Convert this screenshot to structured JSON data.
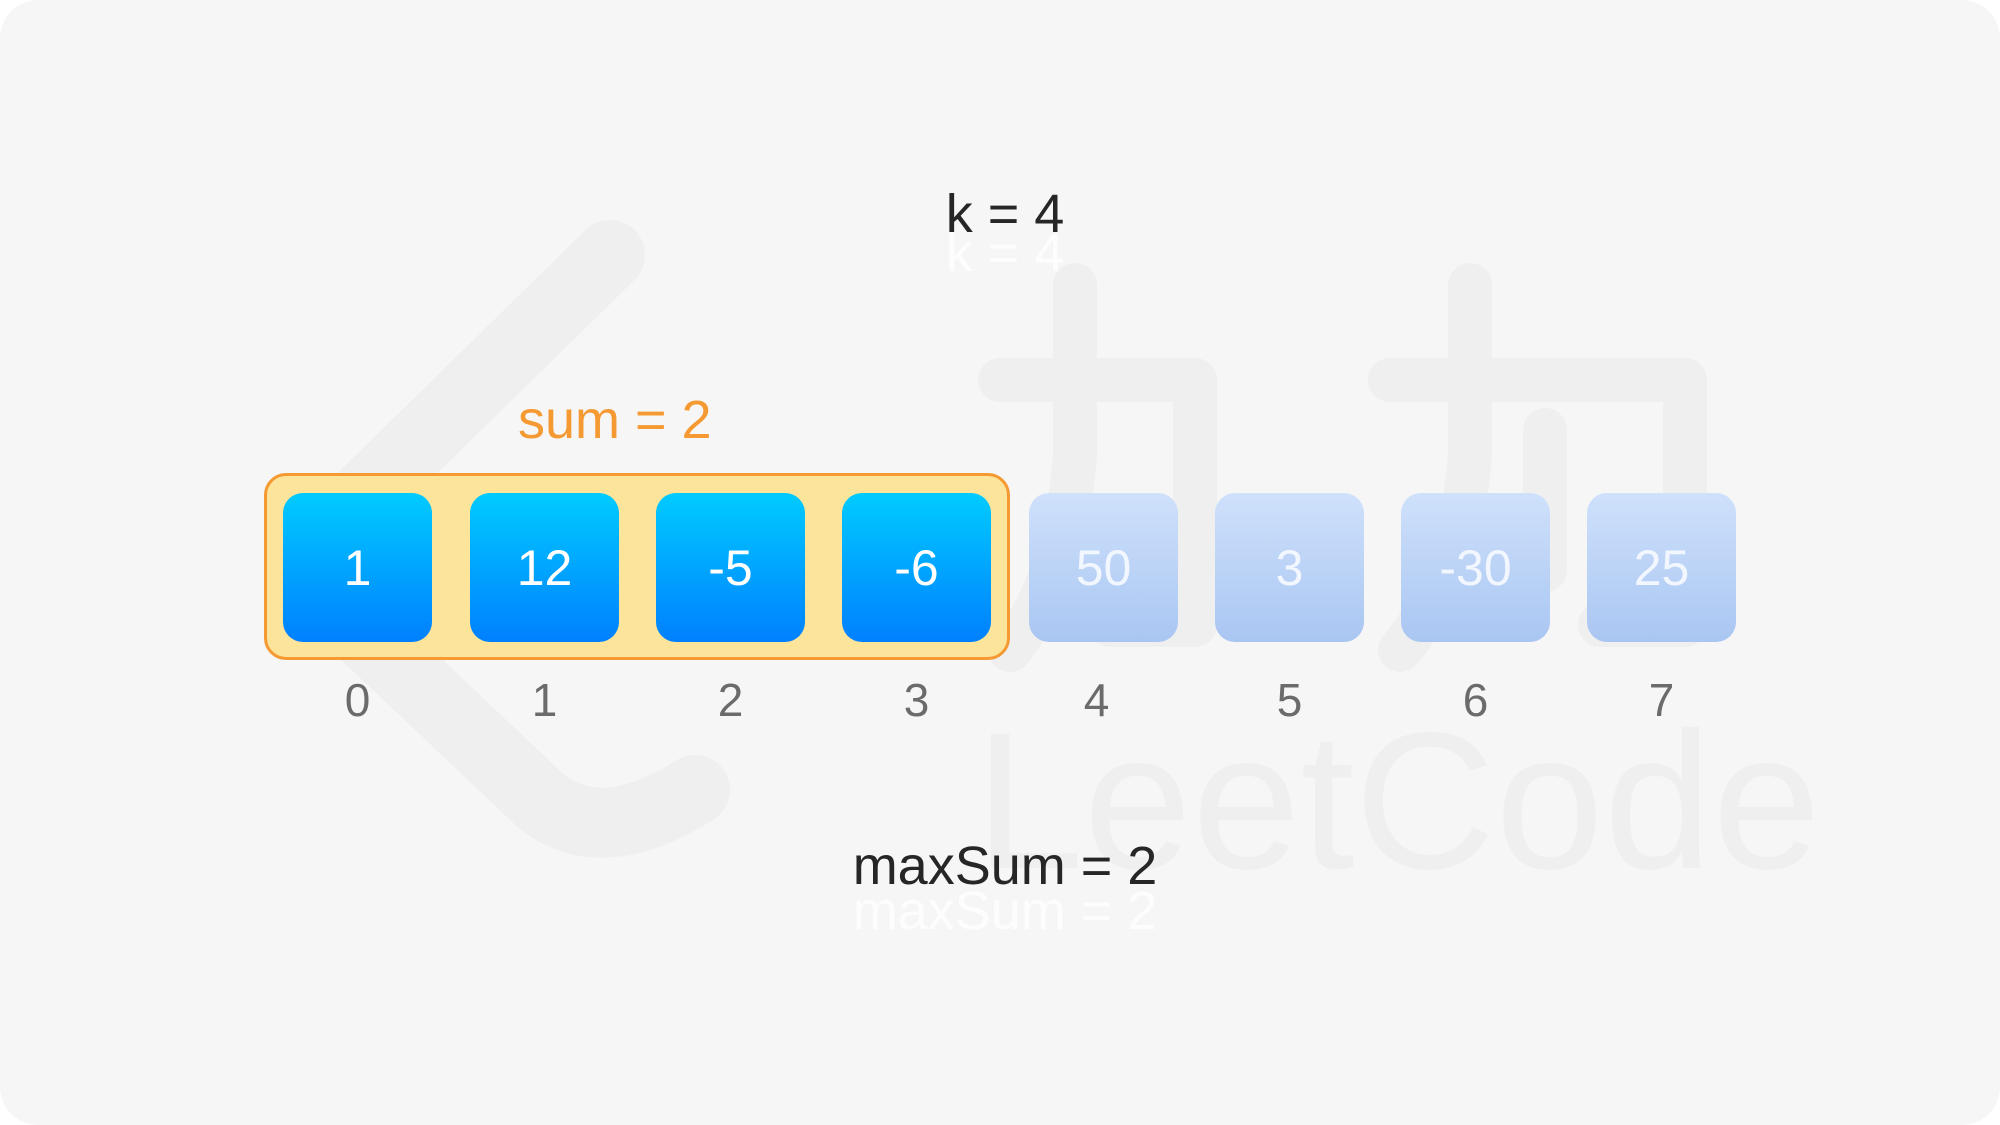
{
  "colors": {
    "background": "#f6f6f6",
    "active_cell_top": "#00cbff",
    "active_cell_bottom": "#0080ff",
    "inactive_cell": "#b7d0f6",
    "window_fill": "#fde49b",
    "window_border": "#f59a33",
    "sum_text": "#f59a33"
  },
  "labels": {
    "k": "k = 4",
    "sum": "sum = 2",
    "max_sum": "maxSum = 2"
  },
  "watermark": {
    "text": "LeetCode"
  },
  "array": {
    "values": [
      "1",
      "12",
      "-5",
      "-6",
      "50",
      "3",
      "-30",
      "25"
    ],
    "indices": [
      "0",
      "1",
      "2",
      "3",
      "4",
      "5",
      "6",
      "7"
    ],
    "window_start": 0,
    "window_size": 4
  }
}
